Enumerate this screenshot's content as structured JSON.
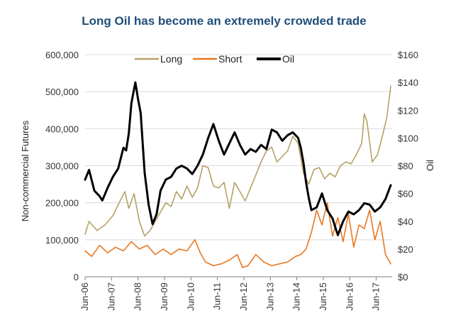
{
  "chart_data": {
    "type": "line",
    "title": "Long Oil has become an extremely crowded trade",
    "ylabel": "Non-commercial Futures",
    "y2label": "Oil",
    "ylim": [
      0,
      600000
    ],
    "y2lim": [
      0,
      160
    ],
    "yticks": [
      "0",
      "100,000",
      "200,000",
      "300,000",
      "400,000",
      "500,000",
      "600,000"
    ],
    "y2ticks": [
      "$0",
      "$20",
      "$40",
      "$60",
      "$80",
      "$100",
      "$120",
      "$140",
      "$160"
    ],
    "xticks": [
      "Jun-06",
      "Jun-07",
      "Jun-08",
      "Jun-09",
      "Jun-10",
      "Jun-11",
      "Jun-12",
      "Jun-13",
      "Jun-14",
      "Jun-15",
      "Jun-16",
      "Jun-17"
    ],
    "xlim": [
      2006.45,
      2018.05
    ],
    "grid": true,
    "legend": "top",
    "colors": {
      "long": "#b5a165",
      "short": "#e87722",
      "oil": "#000000"
    },
    "series": [
      {
        "name": "Long",
        "axis": "left",
        "x": [
          2006.45,
          2006.6,
          2006.9,
          2007.2,
          2007.5,
          2007.7,
          2007.95,
          2008.1,
          2008.3,
          2008.5,
          2008.7,
          2008.9,
          2009.1,
          2009.3,
          2009.5,
          2009.7,
          2009.9,
          2010.1,
          2010.3,
          2010.5,
          2010.7,
          2010.9,
          2011.1,
          2011.3,
          2011.5,
          2011.7,
          2011.9,
          2012.1,
          2012.3,
          2012.5,
          2012.7,
          2012.9,
          2013.1,
          2013.3,
          2013.5,
          2013.7,
          2013.9,
          2014.1,
          2014.3,
          2014.5,
          2014.7,
          2014.9,
          2015.1,
          2015.3,
          2015.5,
          2015.7,
          2015.9,
          2016.1,
          2016.3,
          2016.5,
          2016.7,
          2016.9,
          2017.0,
          2017.1,
          2017.3,
          2017.5,
          2017.7,
          2017.85,
          2018.0
        ],
        "values": [
          115000,
          150000,
          125000,
          140000,
          165000,
          195000,
          230000,
          185000,
          225000,
          150000,
          110000,
          125000,
          150000,
          175000,
          200000,
          190000,
          230000,
          210000,
          245000,
          215000,
          240000,
          300000,
          295000,
          245000,
          240000,
          255000,
          185000,
          255000,
          230000,
          205000,
          240000,
          275000,
          310000,
          340000,
          350000,
          310000,
          325000,
          340000,
          380000,
          360000,
          280000,
          250000,
          290000,
          295000,
          265000,
          280000,
          270000,
          300000,
          310000,
          305000,
          330000,
          360000,
          440000,
          420000,
          310000,
          330000,
          385000,
          430000,
          515000
        ]
      },
      {
        "name": "Short",
        "axis": "left",
        "x": [
          2006.45,
          2006.7,
          2007.0,
          2007.3,
          2007.6,
          2007.9,
          2008.2,
          2008.5,
          2008.8,
          2009.1,
          2009.4,
          2009.7,
          2010.0,
          2010.3,
          2010.6,
          2010.8,
          2011.0,
          2011.3,
          2011.6,
          2011.9,
          2012.2,
          2012.4,
          2012.6,
          2012.9,
          2013.2,
          2013.5,
          2013.8,
          2014.1,
          2014.4,
          2014.6,
          2014.8,
          2015.0,
          2015.2,
          2015.4,
          2015.6,
          2015.8,
          2016.0,
          2016.2,
          2016.4,
          2016.6,
          2016.8,
          2017.0,
          2017.2,
          2017.4,
          2017.6,
          2017.8,
          2018.0
        ],
        "values": [
          70000,
          55000,
          85000,
          65000,
          80000,
          70000,
          95000,
          75000,
          85000,
          60000,
          75000,
          60000,
          75000,
          70000,
          100000,
          65000,
          40000,
          30000,
          35000,
          45000,
          60000,
          25000,
          30000,
          60000,
          40000,
          30000,
          35000,
          40000,
          55000,
          60000,
          75000,
          120000,
          180000,
          140000,
          200000,
          110000,
          160000,
          95000,
          170000,
          80000,
          140000,
          130000,
          180000,
          100000,
          150000,
          60000,
          35000
        ]
      },
      {
        "name": "Oil",
        "axis": "right",
        "x": [
          2006.45,
          2006.6,
          2006.8,
          2007.0,
          2007.1,
          2007.3,
          2007.5,
          2007.7,
          2007.9,
          2008.0,
          2008.1,
          2008.2,
          2008.35,
          2008.45,
          2008.55,
          2008.7,
          2008.85,
          2009.0,
          2009.15,
          2009.3,
          2009.5,
          2009.7,
          2009.9,
          2010.1,
          2010.3,
          2010.5,
          2010.7,
          2010.9,
          2011.1,
          2011.3,
          2011.5,
          2011.7,
          2011.9,
          2012.1,
          2012.3,
          2012.5,
          2012.7,
          2012.9,
          2013.1,
          2013.3,
          2013.5,
          2013.7,
          2013.9,
          2014.1,
          2014.3,
          2014.5,
          2014.6,
          2014.7,
          2014.8,
          2014.9,
          2015.0,
          2015.2,
          2015.4,
          2015.6,
          2015.8,
          2015.9,
          2016.0,
          2016.2,
          2016.4,
          2016.6,
          2016.8,
          2017.0,
          2017.2,
          2017.4,
          2017.6,
          2017.8,
          2018.0
        ],
        "values": [
          70,
          77,
          62,
          58,
          55,
          64,
          72,
          78,
          93,
          91,
          103,
          125,
          140,
          128,
          118,
          75,
          52,
          38,
          45,
          62,
          70,
          72,
          78,
          80,
          78,
          74,
          80,
          88,
          100,
          110,
          98,
          88,
          96,
          104,
          95,
          88,
          92,
          90,
          95,
          92,
          106,
          104,
          98,
          102,
          104,
          100,
          93,
          82,
          68,
          57,
          48,
          50,
          60,
          48,
          42,
          36,
          30,
          40,
          47,
          45,
          48,
          53,
          52,
          47,
          50,
          56,
          66
        ]
      }
    ]
  }
}
